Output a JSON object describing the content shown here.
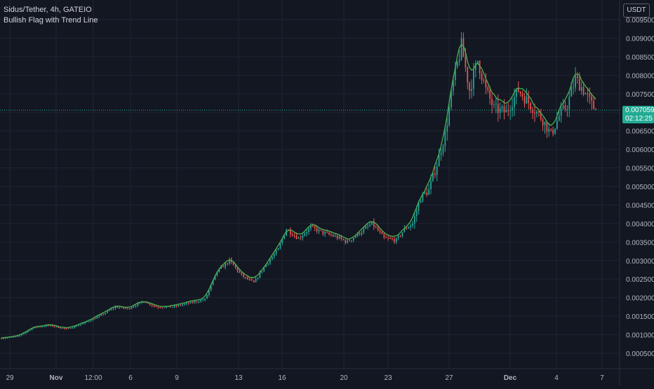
{
  "header": {
    "symbol_line": "Sidus/Tether, 4h, GATEIO",
    "indicator_name": "Bullish Flag with Trend Line"
  },
  "currency_button": "USDT",
  "last_price": {
    "value": "0.007059",
    "countdown": "02:12:25",
    "color": "#22ab94"
  },
  "colors": {
    "background": "#131722",
    "grid": "#1f2431",
    "up": "#26a69a",
    "down": "#ef5350",
    "trend_line": "#4caf50",
    "axis_text": "#b2b5be"
  },
  "chart_data": {
    "type": "candlestick",
    "timeframe": "4h",
    "ylim": [
      0.0003,
      0.0096
    ],
    "y_ticks": [
      "0.000500",
      "0.001000",
      "0.001500",
      "0.002000",
      "0.002500",
      "0.003000",
      "0.003500",
      "0.004000",
      "0.004500",
      "0.005000",
      "0.005500",
      "0.006000",
      "0.006500",
      "0.007000",
      "0.007500",
      "0.008000",
      "0.008500",
      "0.009000",
      "0.009500"
    ],
    "x_ticks": [
      "29",
      "Nov",
      "12:00",
      "6",
      "9",
      "13",
      "16",
      "20",
      "23",
      "27",
      "Dec",
      "4",
      "7"
    ],
    "series": [
      {
        "name": "price",
        "role": "candles"
      },
      {
        "name": "",
        "role": "trend line",
        "color": "#4caf50"
      }
    ],
    "approx_path": [
      [
        0,
        0.0009
      ],
      [
        8,
        0.00095
      ],
      [
        16,
        0.0012
      ],
      [
        24,
        0.00125
      ],
      [
        32,
        0.00115
      ],
      [
        40,
        0.0013
      ],
      [
        48,
        0.0015
      ],
      [
        56,
        0.00175
      ],
      [
        62,
        0.0017
      ],
      [
        70,
        0.0019
      ],
      [
        76,
        0.00175
      ],
      [
        84,
        0.00175
      ],
      [
        92,
        0.00185
      ],
      [
        100,
        0.00195
      ],
      [
        106,
        0.0027
      ],
      [
        112,
        0.003
      ],
      [
        118,
        0.0026
      ],
      [
        124,
        0.0024
      ],
      [
        130,
        0.0029
      ],
      [
        136,
        0.0033
      ],
      [
        140,
        0.00385
      ],
      [
        146,
        0.0036
      ],
      [
        152,
        0.0039
      ],
      [
        158,
        0.00375
      ],
      [
        164,
        0.00365
      ],
      [
        170,
        0.0035
      ],
      [
        176,
        0.00375
      ],
      [
        182,
        0.004
      ],
      [
        188,
        0.0036
      ],
      [
        194,
        0.00355
      ],
      [
        198,
        0.00385
      ],
      [
        202,
        0.004
      ],
      [
        206,
        0.0047
      ],
      [
        210,
        0.0049
      ],
      [
        214,
        0.0056
      ],
      [
        218,
        0.0064
      ],
      [
        222,
        0.0078
      ],
      [
        226,
        0.0088
      ],
      [
        230,
        0.0076
      ],
      [
        234,
        0.0084
      ],
      [
        238,
        0.0076
      ],
      [
        242,
        0.0071
      ],
      [
        248,
        0.007
      ],
      [
        254,
        0.0076
      ],
      [
        260,
        0.0072
      ],
      [
        266,
        0.0068
      ],
      [
        270,
        0.0064
      ],
      [
        274,
        0.0069
      ],
      [
        278,
        0.0072
      ],
      [
        282,
        0.0079
      ],
      [
        286,
        0.0076
      ],
      [
        290,
        0.0072
      ],
      [
        292,
        0.00706
      ]
    ],
    "last_close": 0.007059
  }
}
